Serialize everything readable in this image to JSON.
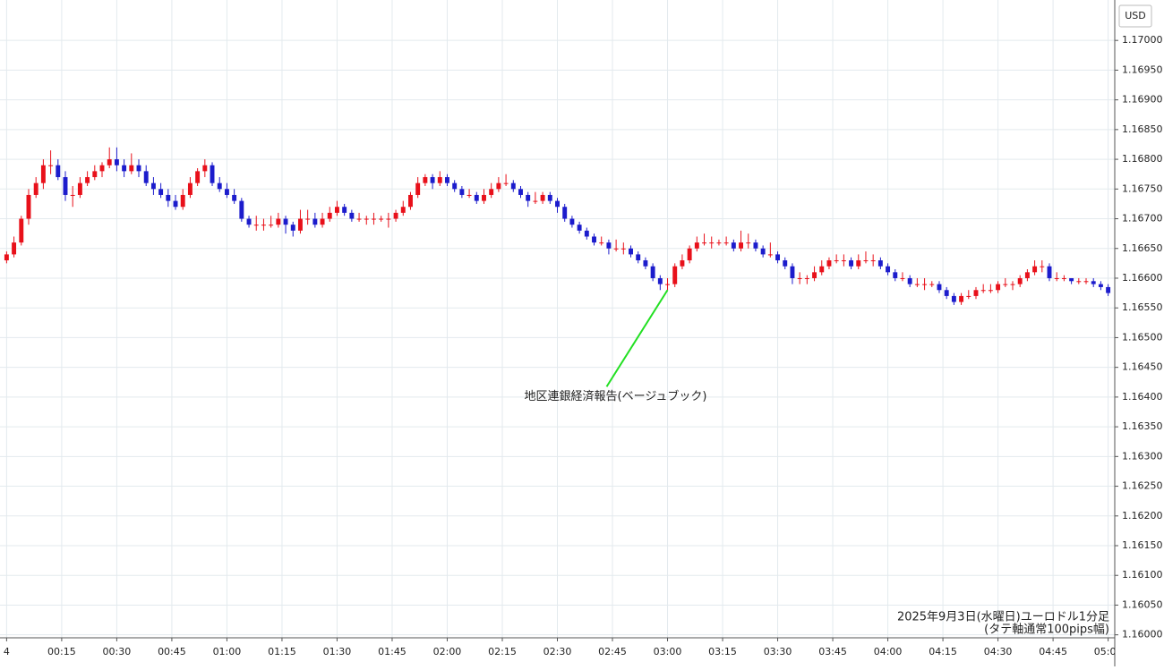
{
  "chart_data": {
    "type": "candlestick",
    "currency": "USD",
    "annotation": "地区連銀経済報告(ベージュブック)",
    "footnote": [
      "2025年9月3日(水曜日)ユーロドル1分足",
      "(タテ軸通常100pips幅)"
    ],
    "up_color": "#e8101a",
    "down_color": "#1c1ccc",
    "annotation_color": "#22e022",
    "grid": true,
    "xlim": [
      -1.8,
      301.8
    ],
    "ylim": [
      1.15995,
      1.17068
    ],
    "xticks": [
      {
        "value": 0,
        "label": "4"
      },
      {
        "value": 15,
        "label": "00:15"
      },
      {
        "value": 30,
        "label": "00:30"
      },
      {
        "value": 45,
        "label": "00:45"
      },
      {
        "value": 60,
        "label": "01:00"
      },
      {
        "value": 75,
        "label": "01:15"
      },
      {
        "value": 90,
        "label": "01:30"
      },
      {
        "value": 105,
        "label": "01:45"
      },
      {
        "value": 120,
        "label": "02:00"
      },
      {
        "value": 135,
        "label": "02:15"
      },
      {
        "value": 150,
        "label": "02:30"
      },
      {
        "value": 165,
        "label": "02:45"
      },
      {
        "value": 180,
        "label": "03:00"
      },
      {
        "value": 195,
        "label": "03:15"
      },
      {
        "value": 210,
        "label": "03:30"
      },
      {
        "value": 225,
        "label": "03:45"
      },
      {
        "value": 240,
        "label": "04:00"
      },
      {
        "value": 255,
        "label": "04:15"
      },
      {
        "value": 270,
        "label": "04:30"
      },
      {
        "value": 285,
        "label": "04:45"
      },
      {
        "value": 300,
        "label": "05:00"
      }
    ],
    "yticks": [
      {
        "value": 1.16,
        "label": "1.16000"
      },
      {
        "value": 1.1605,
        "label": "1.16050"
      },
      {
        "value": 1.161,
        "label": "1.16100"
      },
      {
        "value": 1.1615,
        "label": "1.16150"
      },
      {
        "value": 1.162,
        "label": "1.16200"
      },
      {
        "value": 1.1625,
        "label": "1.16250"
      },
      {
        "value": 1.163,
        "label": "1.16300"
      },
      {
        "value": 1.1635,
        "label": "1.16350"
      },
      {
        "value": 1.164,
        "label": "1.16400"
      },
      {
        "value": 1.1645,
        "label": "1.16450"
      },
      {
        "value": 1.165,
        "label": "1.16500"
      },
      {
        "value": 1.1655,
        "label": "1.16550"
      },
      {
        "value": 1.166,
        "label": "1.16600"
      },
      {
        "value": 1.1665,
        "label": "1.16650"
      },
      {
        "value": 1.167,
        "label": "1.16700"
      },
      {
        "value": 1.1675,
        "label": "1.16750"
      },
      {
        "value": 1.168,
        "label": "1.16800"
      },
      {
        "value": 1.1685,
        "label": "1.16850"
      },
      {
        "value": 1.169,
        "label": "1.16900"
      },
      {
        "value": 1.1695,
        "label": "1.16950"
      },
      {
        "value": 1.17,
        "label": "1.17000"
      }
    ],
    "annotation_at": 90,
    "x": [
      0,
      2,
      4,
      6,
      8,
      10,
      12,
      14,
      16,
      18,
      20,
      22,
      24,
      26,
      28,
      30,
      32,
      34,
      36,
      38,
      40,
      42,
      44,
      46,
      48,
      50,
      52,
      54,
      56,
      58,
      60,
      62,
      64,
      66,
      68,
      70,
      72,
      74,
      76,
      78,
      80,
      82,
      84,
      86,
      88,
      90,
      92,
      94,
      96,
      98,
      100,
      102,
      104,
      106,
      108,
      110,
      112,
      114,
      116,
      118,
      120,
      122,
      124,
      126,
      128,
      130,
      132,
      134,
      136,
      138,
      140,
      142,
      144,
      146,
      148,
      150,
      152,
      154,
      156,
      158,
      160,
      162,
      164,
      166,
      168,
      170,
      172,
      174,
      176,
      178,
      180,
      182,
      184,
      186,
      188,
      190,
      192,
      194,
      196,
      198,
      200,
      202,
      204,
      206,
      208,
      210,
      212,
      214,
      216,
      218,
      220,
      222,
      224,
      226,
      228,
      230,
      232,
      234,
      236,
      238,
      240,
      242,
      244,
      246,
      248,
      250,
      252,
      254,
      256,
      258,
      260,
      262,
      264,
      266,
      268,
      270,
      272,
      274,
      276,
      278,
      280,
      282,
      284,
      286,
      288,
      290,
      292,
      294,
      296,
      298,
      300
    ],
    "ohlc": [
      [
        1.1663,
        1.16645,
        1.16625,
        1.1664
      ],
      [
        1.1664,
        1.1667,
        1.16635,
        1.1666
      ],
      [
        1.1666,
        1.16705,
        1.16655,
        1.167
      ],
      [
        1.167,
        1.1675,
        1.1669,
        1.1674
      ],
      [
        1.1674,
        1.1677,
        1.16735,
        1.1676
      ],
      [
        1.1676,
        1.168,
        1.1675,
        1.1679
      ],
      [
        1.1679,
        1.16815,
        1.16775,
        1.1679
      ],
      [
        1.1679,
        1.168,
        1.16765,
        1.1677
      ],
      [
        1.1677,
        1.1678,
        1.1673,
        1.1674
      ],
      [
        1.1674,
        1.16755,
        1.1672,
        1.1674
      ],
      [
        1.1674,
        1.1677,
        1.16735,
        1.1676
      ],
      [
        1.1676,
        1.1678,
        1.16755,
        1.1677
      ],
      [
        1.1677,
        1.1679,
        1.16765,
        1.1678
      ],
      [
        1.1678,
        1.16795,
        1.1677,
        1.1679
      ],
      [
        1.1679,
        1.1682,
        1.16785,
        1.168
      ],
      [
        1.168,
        1.1682,
        1.1678,
        1.1679
      ],
      [
        1.1679,
        1.168,
        1.1677,
        1.1678
      ],
      [
        1.1678,
        1.1681,
        1.16775,
        1.1679
      ],
      [
        1.1679,
        1.168,
        1.1677,
        1.1678
      ],
      [
        1.1678,
        1.1679,
        1.16755,
        1.1676
      ],
      [
        1.1676,
        1.1677,
        1.1674,
        1.1675
      ],
      [
        1.1675,
        1.1676,
        1.16735,
        1.1674
      ],
      [
        1.1674,
        1.1675,
        1.1672,
        1.1673
      ],
      [
        1.1673,
        1.1674,
        1.16715,
        1.1672
      ],
      [
        1.1672,
        1.1675,
        1.16715,
        1.1674
      ],
      [
        1.1674,
        1.1677,
        1.16735,
        1.1676
      ],
      [
        1.1676,
        1.16785,
        1.16755,
        1.1678
      ],
      [
        1.1678,
        1.168,
        1.1677,
        1.1679
      ],
      [
        1.1679,
        1.16795,
        1.16755,
        1.1676
      ],
      [
        1.1676,
        1.1677,
        1.16745,
        1.1675
      ],
      [
        1.1675,
        1.1676,
        1.16735,
        1.1674
      ],
      [
        1.1674,
        1.1675,
        1.16725,
        1.1673
      ],
      [
        1.1673,
        1.16735,
        1.16695,
        1.167
      ],
      [
        1.167,
        1.16705,
        1.16685,
        1.1669
      ],
      [
        1.1669,
        1.16705,
        1.1668,
        1.1669
      ],
      [
        1.1669,
        1.167,
        1.1668,
        1.1669
      ],
      [
        1.1669,
        1.16705,
        1.16685,
        1.1669
      ],
      [
        1.1669,
        1.1671,
        1.16685,
        1.167
      ],
      [
        1.167,
        1.16705,
        1.16675,
        1.1669
      ],
      [
        1.1669,
        1.16695,
        1.1667,
        1.1668
      ],
      [
        1.1668,
        1.16715,
        1.16675,
        1.167
      ],
      [
        1.167,
        1.16715,
        1.1669,
        1.167
      ],
      [
        1.167,
        1.1671,
        1.16685,
        1.1669
      ],
      [
        1.1669,
        1.1671,
        1.16685,
        1.167
      ],
      [
        1.167,
        1.1672,
        1.16695,
        1.1671
      ],
      [
        1.1671,
        1.1673,
        1.16705,
        1.1672
      ],
      [
        1.1672,
        1.16725,
        1.16705,
        1.1671
      ],
      [
        1.1671,
        1.16715,
        1.16695,
        1.167
      ],
      [
        1.167,
        1.1671,
        1.16695,
        1.167
      ],
      [
        1.167,
        1.16705,
        1.1669,
        1.167
      ],
      [
        1.167,
        1.1671,
        1.1669,
        1.167
      ],
      [
        1.167,
        1.16705,
        1.16695,
        1.167
      ],
      [
        1.167,
        1.1671,
        1.16685,
        1.167
      ],
      [
        1.167,
        1.16715,
        1.16695,
        1.1671
      ],
      [
        1.1671,
        1.1673,
        1.16705,
        1.1672
      ],
      [
        1.1672,
        1.16745,
        1.16715,
        1.1674
      ],
      [
        1.1674,
        1.1677,
        1.16735,
        1.1676
      ],
      [
        1.1676,
        1.16775,
        1.16755,
        1.1677
      ],
      [
        1.1677,
        1.16775,
        1.1675,
        1.1676
      ],
      [
        1.1676,
        1.1678,
        1.16755,
        1.1677
      ],
      [
        1.1677,
        1.16775,
        1.16755,
        1.1676
      ],
      [
        1.1676,
        1.16765,
        1.16745,
        1.1675
      ],
      [
        1.1675,
        1.16755,
        1.16735,
        1.1674
      ],
      [
        1.1674,
        1.1675,
        1.16735,
        1.1674
      ],
      [
        1.1674,
        1.16745,
        1.16725,
        1.1673
      ],
      [
        1.1673,
        1.1675,
        1.16725,
        1.1674
      ],
      [
        1.1674,
        1.1676,
        1.16735,
        1.1675
      ],
      [
        1.1675,
        1.1677,
        1.16745,
        1.1676
      ],
      [
        1.1676,
        1.16775,
        1.16755,
        1.1676
      ],
      [
        1.1676,
        1.16765,
        1.16745,
        1.1675
      ],
      [
        1.1675,
        1.16755,
        1.16735,
        1.1674
      ],
      [
        1.1674,
        1.16745,
        1.1672,
        1.1673
      ],
      [
        1.1673,
        1.16745,
        1.16725,
        1.1673
      ],
      [
        1.1673,
        1.16745,
        1.16725,
        1.1674
      ],
      [
        1.1674,
        1.16745,
        1.16725,
        1.1673
      ],
      [
        1.1673,
        1.16735,
        1.1671,
        1.1672
      ],
      [
        1.1672,
        1.16725,
        1.16695,
        1.167
      ],
      [
        1.167,
        1.16705,
        1.16685,
        1.1669
      ],
      [
        1.1669,
        1.16695,
        1.16675,
        1.1668
      ],
      [
        1.1668,
        1.16685,
        1.16665,
        1.1667
      ],
      [
        1.1667,
        1.16675,
        1.16655,
        1.1666
      ],
      [
        1.1666,
        1.1667,
        1.16655,
        1.1666
      ],
      [
        1.1666,
        1.16665,
        1.1664,
        1.1665
      ],
      [
        1.1665,
        1.16665,
        1.16645,
        1.1665
      ],
      [
        1.1665,
        1.1666,
        1.1664,
        1.1665
      ],
      [
        1.1665,
        1.16655,
        1.16635,
        1.1664
      ],
      [
        1.1664,
        1.16645,
        1.16625,
        1.1663
      ],
      [
        1.1663,
        1.16635,
        1.16615,
        1.1662
      ],
      [
        1.1662,
        1.16625,
        1.16595,
        1.166
      ],
      [
        1.166,
        1.16605,
        1.1658,
        1.1659
      ],
      [
        1.1659,
        1.166,
        1.1658,
        1.1659
      ],
      [
        1.1659,
        1.16625,
        1.16585,
        1.1662
      ],
      [
        1.1662,
        1.1664,
        1.16615,
        1.1663
      ],
      [
        1.1663,
        1.16655,
        1.16625,
        1.1665
      ],
      [
        1.1665,
        1.1667,
        1.16645,
        1.1666
      ],
      [
        1.1666,
        1.16675,
        1.16655,
        1.1666
      ],
      [
        1.1666,
        1.1667,
        1.1665,
        1.1666
      ],
      [
        1.1666,
        1.16665,
        1.16655,
        1.1666
      ],
      [
        1.1666,
        1.1667,
        1.16655,
        1.1666
      ],
      [
        1.1666,
        1.16665,
        1.16645,
        1.1665
      ],
      [
        1.1665,
        1.1668,
        1.16645,
        1.1666
      ],
      [
        1.1666,
        1.16675,
        1.1665,
        1.1666
      ],
      [
        1.1666,
        1.16665,
        1.16645,
        1.1665
      ],
      [
        1.1665,
        1.16655,
        1.16635,
        1.1664
      ],
      [
        1.1664,
        1.1666,
        1.16635,
        1.1664
      ],
      [
        1.1664,
        1.16645,
        1.16625,
        1.1663
      ],
      [
        1.1663,
        1.16635,
        1.16615,
        1.1662
      ],
      [
        1.1662,
        1.16625,
        1.1659,
        1.166
      ],
      [
        1.166,
        1.1661,
        1.1659,
        1.166
      ],
      [
        1.166,
        1.16605,
        1.1659,
        1.166
      ],
      [
        1.166,
        1.1662,
        1.16595,
        1.1661
      ],
      [
        1.1661,
        1.1663,
        1.16605,
        1.1662
      ],
      [
        1.1662,
        1.16635,
        1.16615,
        1.1663
      ],
      [
        1.1663,
        1.1664,
        1.16625,
        1.1663
      ],
      [
        1.1663,
        1.1664,
        1.1662,
        1.1663
      ],
      [
        1.1663,
        1.16635,
        1.16615,
        1.1662
      ],
      [
        1.1662,
        1.1664,
        1.16615,
        1.1663
      ],
      [
        1.1663,
        1.16645,
        1.16625,
        1.1663
      ],
      [
        1.1663,
        1.1664,
        1.1662,
        1.1663
      ],
      [
        1.1663,
        1.16635,
        1.16615,
        1.1662
      ],
      [
        1.1662,
        1.16625,
        1.16605,
        1.1661
      ],
      [
        1.1661,
        1.16615,
        1.16595,
        1.166
      ],
      [
        1.166,
        1.1661,
        1.16595,
        1.166
      ],
      [
        1.166,
        1.16605,
        1.16585,
        1.1659
      ],
      [
        1.1659,
        1.166,
        1.16585,
        1.1659
      ],
      [
        1.1659,
        1.166,
        1.1658,
        1.1659
      ],
      [
        1.1659,
        1.16595,
        1.16585,
        1.1659
      ],
      [
        1.1659,
        1.16595,
        1.16575,
        1.1658
      ],
      [
        1.1658,
        1.16585,
        1.16565,
        1.1657
      ],
      [
        1.1657,
        1.16575,
        1.16555,
        1.1656
      ],
      [
        1.1656,
        1.16575,
        1.16555,
        1.1657
      ],
      [
        1.1657,
        1.1658,
        1.16565,
        1.1657
      ],
      [
        1.1657,
        1.16585,
        1.16565,
        1.1658
      ],
      [
        1.1658,
        1.1659,
        1.16575,
        1.1658
      ],
      [
        1.1658,
        1.1659,
        1.16575,
        1.1658
      ],
      [
        1.1658,
        1.16595,
        1.16575,
        1.1659
      ],
      [
        1.1659,
        1.166,
        1.16585,
        1.1659
      ],
      [
        1.1659,
        1.16595,
        1.1658,
        1.1659
      ],
      [
        1.1659,
        1.16605,
        1.16585,
        1.166
      ],
      [
        1.166,
        1.16615,
        1.16595,
        1.1661
      ],
      [
        1.1661,
        1.1663,
        1.16605,
        1.1662
      ],
      [
        1.1662,
        1.1663,
        1.1661,
        1.1662
      ],
      [
        1.1662,
        1.16625,
        1.16595,
        1.166
      ],
      [
        1.166,
        1.1661,
        1.16595,
        1.166
      ],
      [
        1.166,
        1.16605,
        1.16595,
        1.166
      ],
      [
        1.166,
        1.166,
        1.1659,
        1.16595
      ],
      [
        1.16595,
        1.166,
        1.1659,
        1.16595
      ],
      [
        1.16595,
        1.166,
        1.1659,
        1.16595
      ],
      [
        1.16595,
        1.166,
        1.16585,
        1.1659
      ],
      [
        1.1659,
        1.16595,
        1.1658,
        1.16585
      ],
      [
        1.16585,
        1.1659,
        1.1657,
        1.16575
      ]
    ]
  }
}
